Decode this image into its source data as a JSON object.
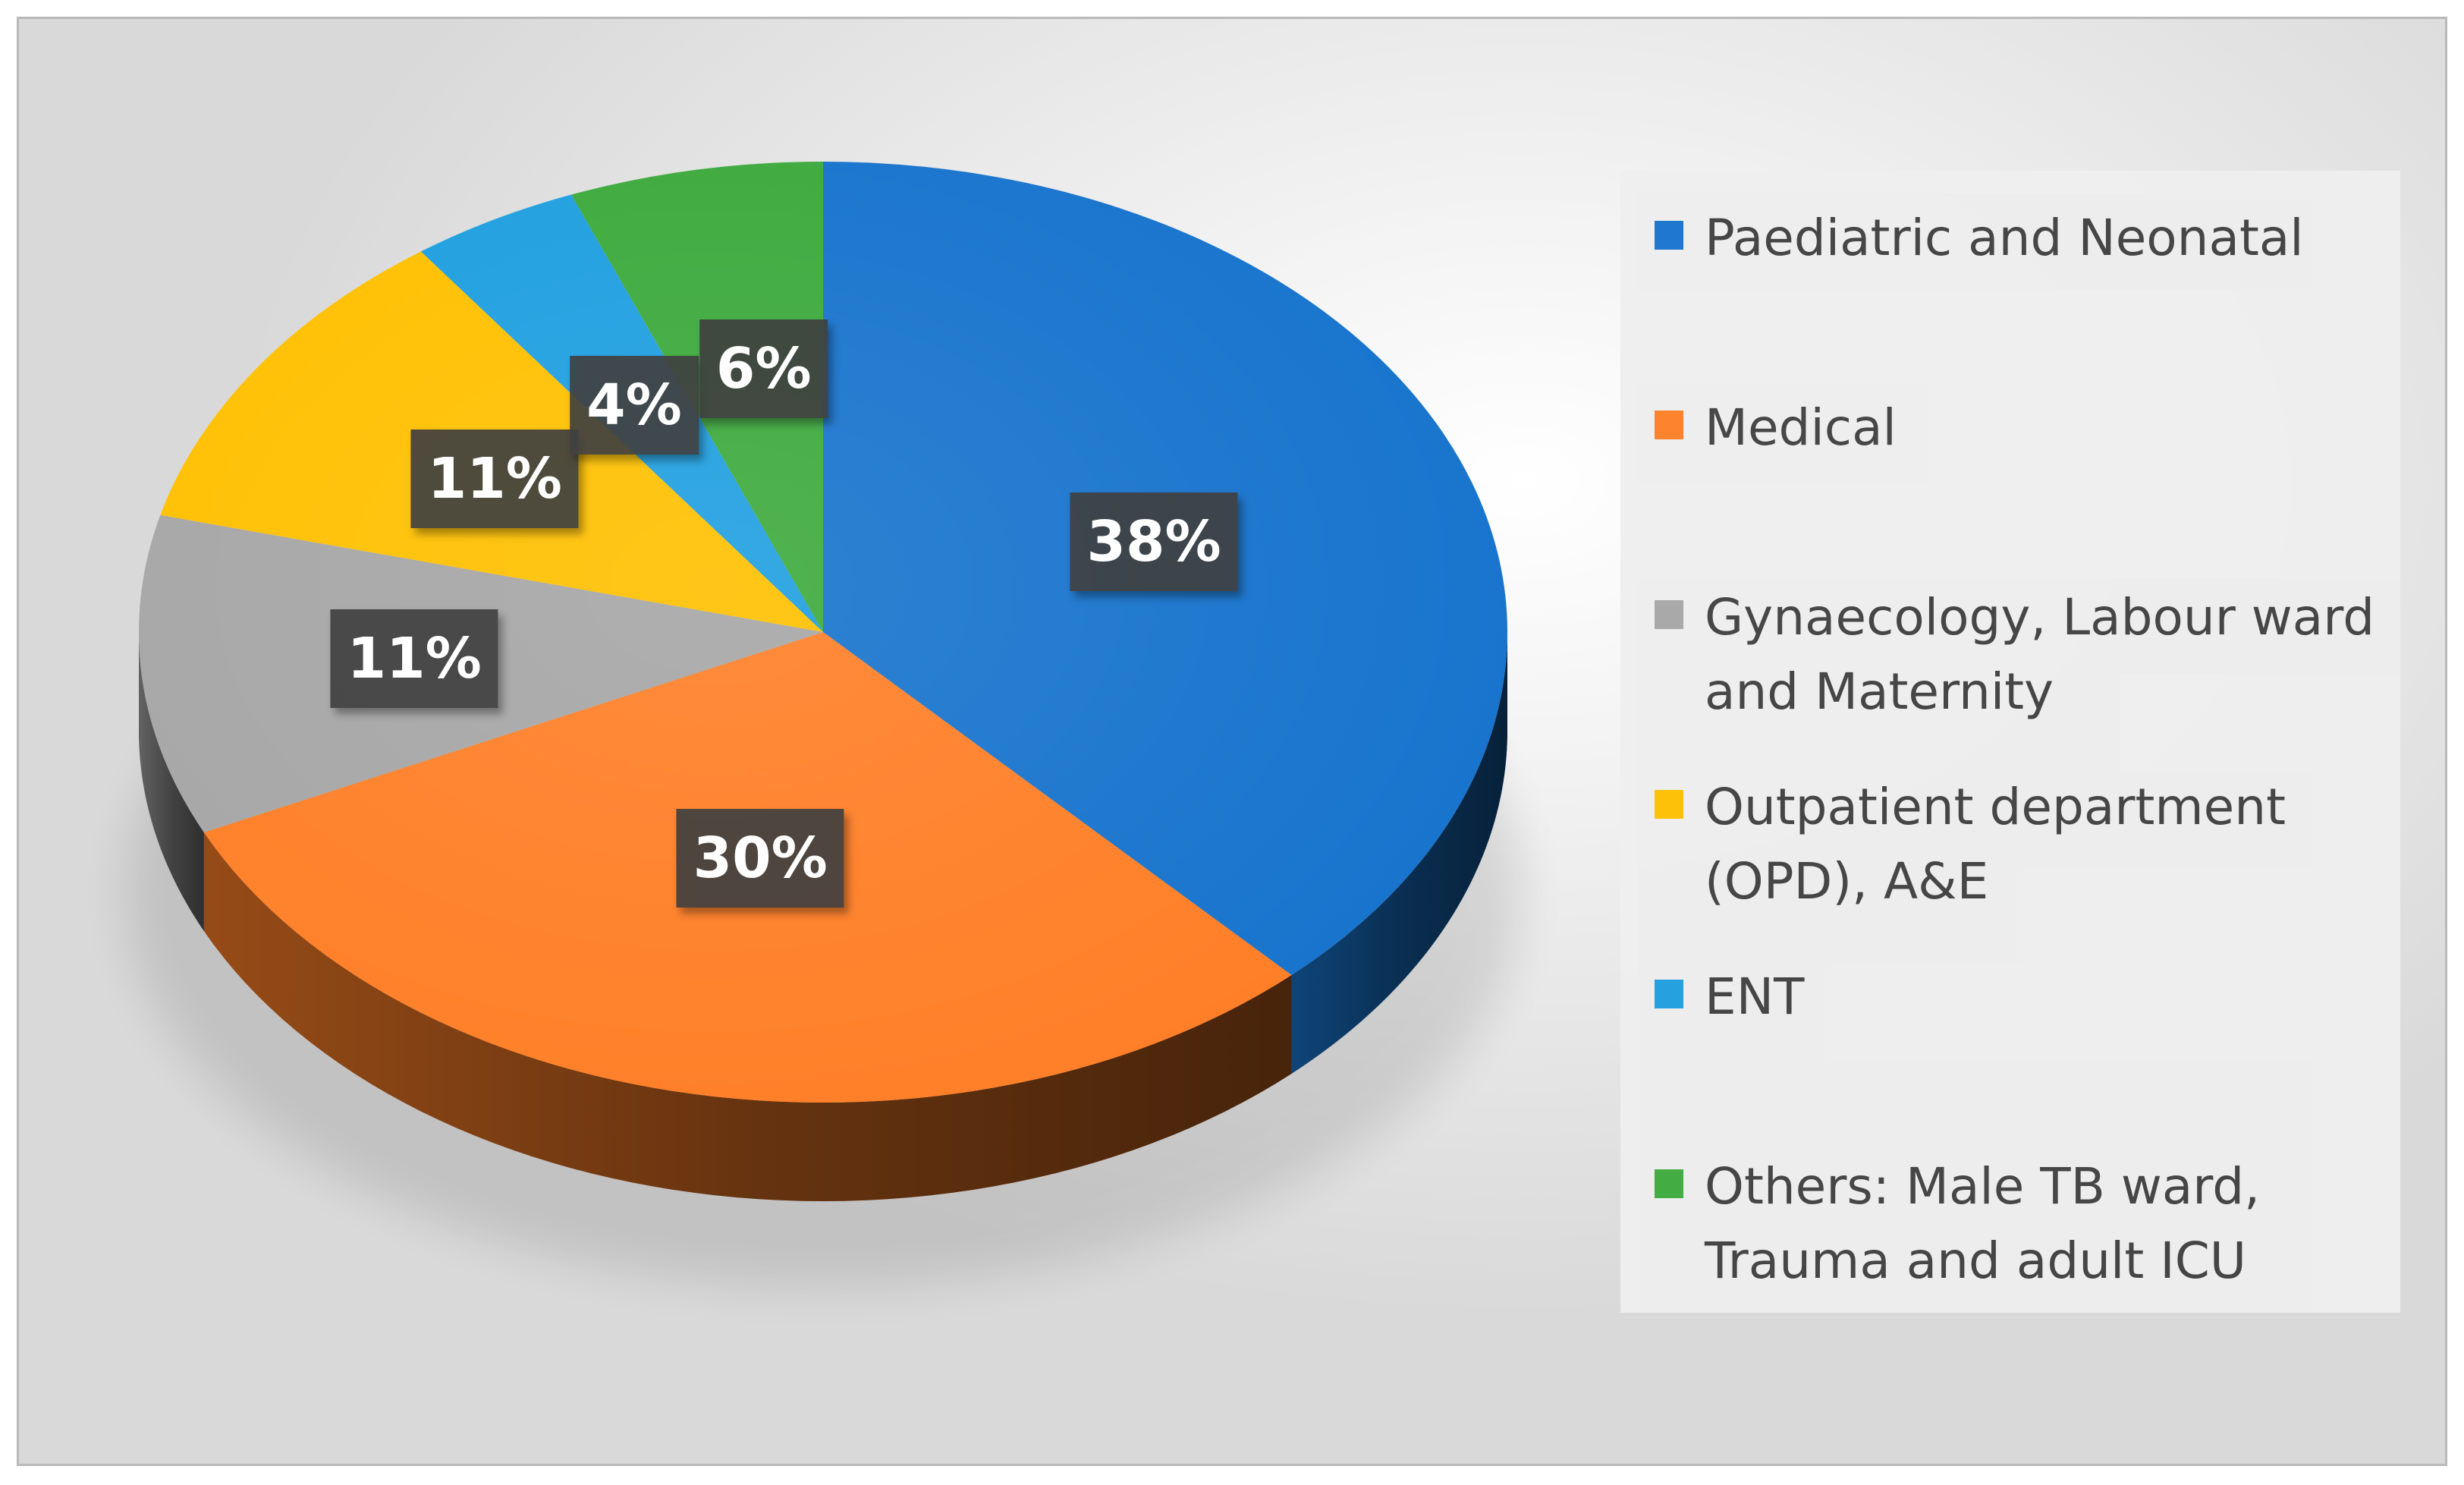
{
  "chart_data": {
    "type": "pie",
    "style": "3d",
    "title": "",
    "series": [
      {
        "name": "Paediatric and Neonatal",
        "value": 38,
        "label": "38%",
        "color": "#1874cd",
        "legend_lines": [
          "Paediatric and Neonatal"
        ]
      },
      {
        "name": "Medical",
        "value": 30,
        "label": "30%",
        "color": "#ff7f27",
        "legend_lines": [
          "Medical"
        ]
      },
      {
        "name": "Gynaecology, Labour ward and Maternity",
        "value": 11,
        "label": "11%",
        "color": "#a6a6a6",
        "legend_lines": [
          "Gynaecology, Labour ward",
          "and Maternity"
        ]
      },
      {
        "name": "Outpatient department (OPD), A&E",
        "value": 11,
        "label": "11%",
        "color": "#ffc000",
        "legend_lines": [
          "Outpatient department",
          "(OPD), A&E"
        ]
      },
      {
        "name": "ENT",
        "value": 4,
        "label": "4%",
        "color": "#1f9fe0",
        "legend_lines": [
          "ENT"
        ]
      },
      {
        "name": "Others: Male TB ward, Trauma and adult ICU",
        "value": 6,
        "label": "6%",
        "color": "#3daa3d",
        "legend_lines": [
          "Others: Male TB ward,",
          "Trauma and adult ICU"
        ]
      }
    ],
    "legend_position": "right"
  }
}
